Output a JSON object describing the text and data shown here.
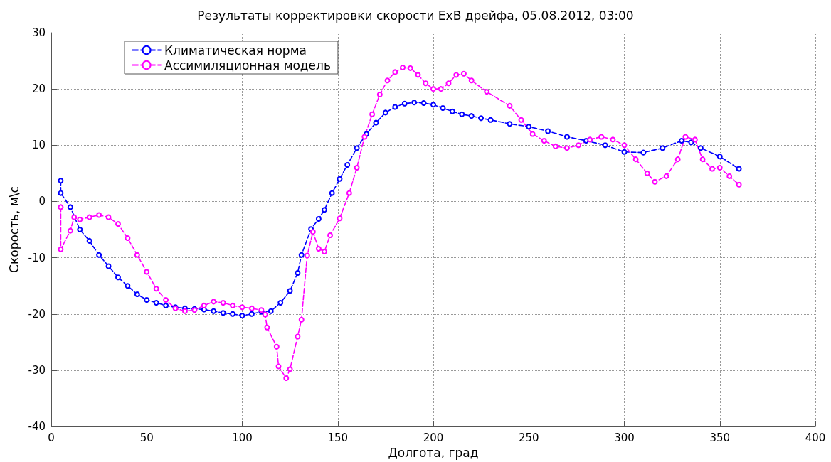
{
  "chart_data": {
    "type": "line",
    "title": "Результаты корректировки скорости ExB дрейфа, 05.08.2012, 03:00",
    "xlabel": "Долгота, град",
    "ylabel": "Скорость, м\\с",
    "xlim": [
      0,
      400
    ],
    "xticks": [
      0,
      50,
      100,
      150,
      200,
      250,
      300,
      350,
      400
    ],
    "ylim": [
      -40,
      30
    ],
    "yticks": [
      -40,
      -30,
      -20,
      -10,
      0,
      10,
      20,
      30
    ],
    "grid": true,
    "legend": "top left",
    "marker": "circle",
    "line_style": "dashed",
    "series": [
      {
        "name": "Климатическая норма",
        "color": "#0000ff",
        "x": [
          5,
          5,
          10,
          15,
          20,
          25,
          30,
          35,
          40,
          45,
          50,
          55,
          60,
          65,
          70,
          75,
          80,
          85,
          90,
          95,
          100,
          105,
          110,
          115,
          120,
          125,
          129,
          131,
          136,
          140,
          143,
          147,
          151,
          155,
          160,
          165,
          170,
          175,
          180,
          185,
          190,
          195,
          200,
          205,
          210,
          215,
          220,
          225,
          230,
          240,
          250,
          260,
          270,
          280,
          290,
          300,
          310,
          320,
          330,
          335,
          340,
          350,
          360
        ],
        "values": [
          3.7,
          1.5,
          -1,
          -5,
          -7,
          -9.5,
          -11.5,
          -13.5,
          -15,
          -16.5,
          -17.5,
          -18,
          -18.5,
          -18.8,
          -19,
          -19.1,
          -19.2,
          -19.5,
          -19.8,
          -20,
          -20.3,
          -20,
          -19.6,
          -19.5,
          -18,
          -15.9,
          -12.7,
          -9.5,
          -4.9,
          -3.1,
          -1.5,
          1.5,
          4,
          6.5,
          9.5,
          12,
          14,
          15.8,
          16.8,
          17.4,
          17.6,
          17.5,
          17.2,
          16.6,
          16,
          15.5,
          15.2,
          14.8,
          14.5,
          13.8,
          13.3,
          12.5,
          11.5,
          10.8,
          10,
          8.8,
          8.7,
          9.5,
          10.8,
          10.5,
          9.5,
          8,
          5.8
        ]
      },
      {
        "name": "Ассимиляционная модель",
        "color": "#ff00ff",
        "x": [
          5,
          5,
          10,
          12,
          15,
          20,
          25,
          30,
          35,
          40,
          45,
          50,
          55,
          60,
          65,
          70,
          75,
          80,
          85,
          90,
          95,
          100,
          105,
          110,
          112,
          113,
          118,
          119,
          123,
          125,
          129,
          131,
          134,
          137,
          140,
          143,
          146,
          151,
          156,
          160,
          164,
          168,
          172,
          176,
          180,
          184,
          188,
          192,
          196,
          200,
          204,
          208,
          212,
          216,
          220,
          228,
          240,
          246,
          252,
          258,
          264,
          270,
          276,
          282,
          288,
          294,
          300,
          306,
          312,
          316,
          322,
          328,
          332,
          337,
          341,
          346,
          350,
          355,
          360
        ],
        "values": [
          -1,
          -8.5,
          -5.2,
          -2.8,
          -3.2,
          -2.8,
          -2.4,
          -2.8,
          -4,
          -6.5,
          -9.5,
          -12.5,
          -15.5,
          -17.5,
          -19,
          -19.5,
          -19.3,
          -18.5,
          -17.8,
          -18,
          -18.5,
          -18.8,
          -19,
          -19.3,
          -20.1,
          -22.4,
          -25.8,
          -29.3,
          -31.4,
          -29.8,
          -24,
          -21,
          -9.6,
          -5.4,
          -8.4,
          -8.9,
          -6,
          -3,
          1.5,
          6,
          11.5,
          15.5,
          19,
          21.5,
          23,
          23.8,
          23.7,
          22.5,
          21,
          20,
          20,
          21,
          22.5,
          22.7,
          21.5,
          19.5,
          17,
          14.5,
          12,
          10.8,
          9.8,
          9.5,
          10,
          11,
          11.5,
          11,
          10,
          7.5,
          5,
          3.5,
          4.5,
          7.5,
          11.5,
          11,
          7.5,
          5.8,
          6,
          4.5,
          3
        ]
      }
    ]
  }
}
